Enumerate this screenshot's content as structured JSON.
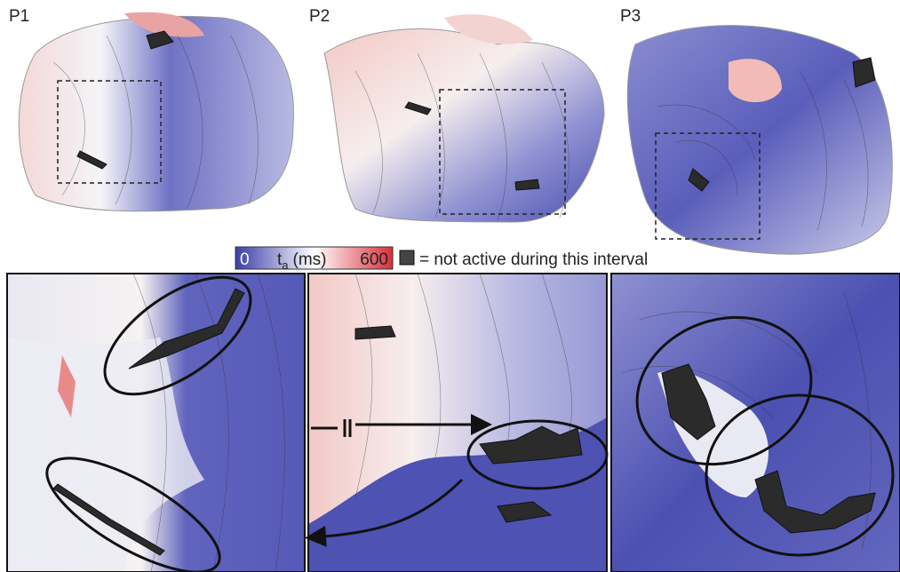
{
  "panels": [
    {
      "label": "P1"
    },
    {
      "label": "P2"
    },
    {
      "label": "P3"
    }
  ],
  "colorbar": {
    "min": 0,
    "max": 600,
    "label_main": "t",
    "label_sub": "a",
    "label_unit": "(ms)"
  },
  "legend": {
    "text": "= not active during this interval"
  }
}
